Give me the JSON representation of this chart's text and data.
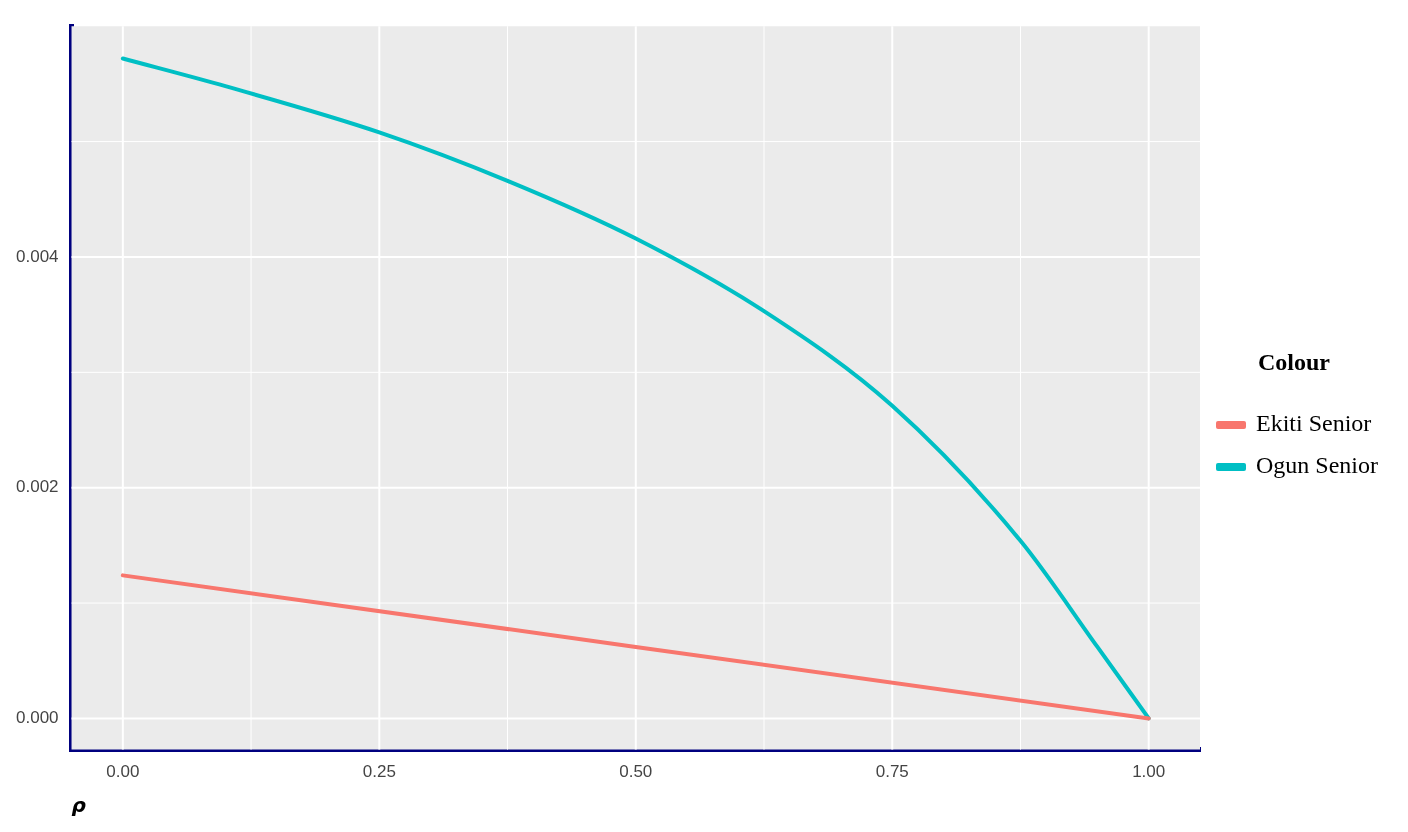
{
  "chart_data": {
    "type": "line",
    "xlabel": "ρ",
    "legend_title": "Colour",
    "legend": "right",
    "grid": true,
    "marker": "none",
    "line_style": "solid",
    "xlim": [
      -0.05,
      1.05
    ],
    "ylim": [
      -0.00027,
      0.006
    ],
    "xticks": [
      {
        "value": 0,
        "label": "0.00"
      },
      {
        "value": 0.25,
        "label": "0.25"
      },
      {
        "value": 0.5,
        "label": "0.50"
      },
      {
        "value": 0.75,
        "label": "0.75"
      },
      {
        "value": 1,
        "label": "1.00"
      }
    ],
    "yticks": [
      {
        "value": 0,
        "label": "0.000"
      },
      {
        "value": 0.002,
        "label": "0.002"
      },
      {
        "value": 0.004,
        "label": "0.004"
      }
    ],
    "series": [
      {
        "name": "Ekiti Senior",
        "color": "#f8766d",
        "x": [
          0,
          0.5,
          1
        ],
        "values": [
          0.00124,
          0.00062,
          0
        ]
      },
      {
        "name": "Ogun Senior",
        "color": "#00bfc4",
        "x": [
          0,
          0.1,
          0.25,
          0.375,
          0.5,
          0.625,
          0.75,
          0.875,
          0.95,
          1
        ],
        "values": [
          0.00572,
          0.00548,
          0.00508,
          0.00466,
          0.00416,
          0.00353,
          0.00271,
          0.00154,
          0.00062,
          0
        ]
      }
    ]
  }
}
